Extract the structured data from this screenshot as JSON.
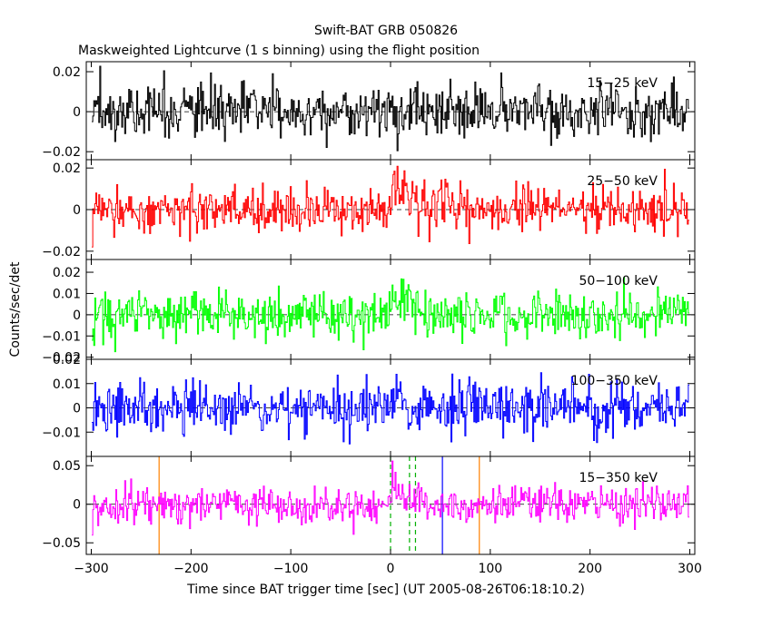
{
  "chart_data": {
    "type": "line",
    "title": "Swift-BAT GRB 050826",
    "subtitle": "Maskweighted Lightcurve (1 s binning) using the flight position",
    "xlabel": "Time since BAT trigger time [sec] (UT 2005-08-26T06:18:10.2)",
    "ylabel": "Counts/sec/det",
    "xlim": [
      -305,
      305
    ],
    "x_ticks": [
      -300,
      -200,
      -100,
      0,
      100,
      200,
      300
    ],
    "x_tick_labels": [
      "−300",
      "−200",
      "−100",
      "0",
      "100",
      "200",
      "300"
    ],
    "x_samples": {
      "start": -299,
      "end": 299,
      "step": 1
    },
    "panels": [
      {
        "band": "15−25 keV",
        "color": "#000000",
        "ylim": [
          -0.024,
          0.025
        ],
        "y_ticks": [
          0.02,
          0,
          -0.02
        ],
        "y_tick_labels": [
          "0.02",
          "0",
          "−0.02"
        ],
        "noise_sigma": 0.0065,
        "start_value": -0.005,
        "features": []
      },
      {
        "band": "25−50 keV",
        "color": "#ff0000",
        "ylim": [
          -0.024,
          0.024
        ],
        "y_ticks": [
          0.02,
          0,
          -0.02
        ],
        "y_tick_labels": [
          "0.02",
          "0",
          "−0.02"
        ],
        "noise_sigma": 0.0055,
        "start_value": -0.018,
        "features": [
          {
            "x": 2,
            "peak": 0.016
          },
          {
            "x": 12,
            "peak": 0.008
          }
        ]
      },
      {
        "band": "50−100 keV",
        "color": "#00ff00",
        "ylim": [
          -0.021,
          0.026
        ],
        "y_ticks": [
          0.02,
          0.01,
          0,
          -0.01,
          -0.02
        ],
        "y_tick_labels": [
          "0.02",
          "0.01",
          "0",
          "−0.01",
          "−0.02"
        ],
        "noise_sigma": 0.0055,
        "start_value": -0.012,
        "features": [
          {
            "x": 2,
            "peak": 0.012
          },
          {
            "x": 12,
            "peak": 0.006
          }
        ]
      },
      {
        "band": "100−350 keV",
        "color": "#0000ff",
        "ylim": [
          -0.02,
          0.02
        ],
        "y_ticks": [
          0.02,
          0.01,
          0,
          -0.01
        ],
        "y_tick_labels": [
          "0.02",
          "0.01",
          "0",
          "−0.01"
        ],
        "noise_sigma": 0.0055,
        "start_value": -0.006,
        "features": [
          {
            "x": 3,
            "peak": 0.007
          }
        ]
      },
      {
        "band": "15−350 keV",
        "color": "#ff00ff",
        "ylim": [
          -0.065,
          0.062
        ],
        "y_ticks": [
          0.05,
          0,
          -0.05
        ],
        "y_tick_labels": [
          "0.05",
          "0",
          "−0.05"
        ],
        "noise_sigma": 0.012,
        "start_value": -0.04,
        "features": [
          {
            "x": 2,
            "peak": 0.035
          },
          {
            "x": 15,
            "peak": 0.012
          }
        ],
        "markers": [
          {
            "x": -232,
            "color": "#ff8000",
            "style": "solid"
          },
          {
            "x": 0,
            "color": "#00b000",
            "style": "dashed"
          },
          {
            "x": 19,
            "color": "#00b000",
            "style": "dashed"
          },
          {
            "x": 25,
            "color": "#00b000",
            "style": "dashed"
          },
          {
            "x": 52,
            "color": "#0000ff",
            "style": "solid"
          },
          {
            "x": 89,
            "color": "#ff8000",
            "style": "solid"
          }
        ]
      }
    ]
  }
}
